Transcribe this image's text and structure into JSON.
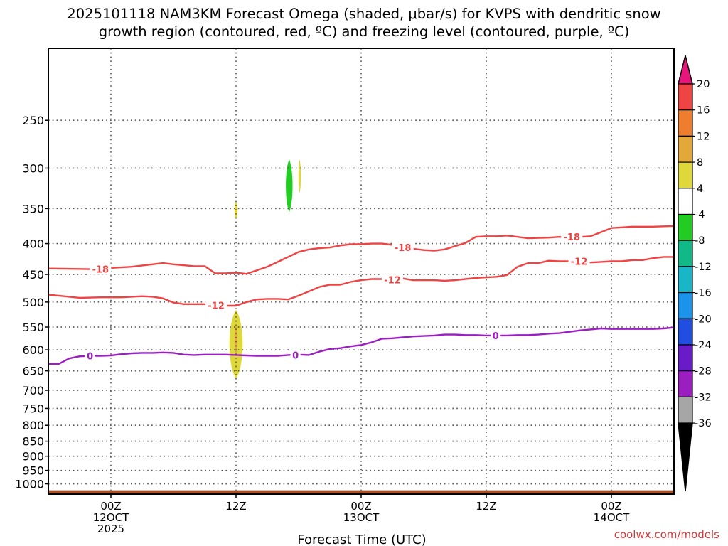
{
  "title_line1": "2025101118 NAM3KM Forecast Omega (shaded, μbar/s) for KVPS with dendritic snow",
  "title_line2": "growth region (contoured, red, ºC) and freezing level (contoured, purple, ºC)",
  "credit": "coolwx.com/models",
  "chart_data": {
    "type": "area",
    "title": "2025101118 NAM3KM Forecast Omega (shaded, μbar/s) for KVPS with dendritic snow growth region (contoured, red, ºC) and freezing level (contoured, purple, ºC)",
    "xlabel": "Forecast Time (UTC)",
    "ylabel": "",
    "x_unit": "hours since 2025-10-11 18Z",
    "xlim": [
      0,
      60
    ],
    "ylim": [
      1040,
      190
    ],
    "y_scale": "log",
    "grid": true,
    "y_ticks": [
      250,
      300,
      350,
      400,
      450,
      500,
      550,
      600,
      650,
      700,
      750,
      800,
      850,
      900,
      950,
      1000
    ],
    "x_ticks": [
      {
        "hour": 6,
        "lines": [
          "00Z",
          "12OCT",
          "2025"
        ]
      },
      {
        "hour": 18,
        "lines": [
          "12Z"
        ]
      },
      {
        "hour": 30,
        "lines": [
          "00Z",
          "13OCT"
        ]
      },
      {
        "hour": 42,
        "lines": [
          "12Z"
        ]
      },
      {
        "hour": 54,
        "lines": [
          "00Z",
          "14OCT"
        ]
      }
    ],
    "contours": [
      {
        "level": -18,
        "color": "#ee4444",
        "x": [
          0,
          4,
          8,
          11,
          12,
          14,
          15,
          16,
          17,
          18,
          19,
          20,
          21,
          22,
          23,
          24,
          25,
          26,
          27,
          28,
          29,
          30,
          31,
          32,
          33,
          34,
          35,
          36,
          37,
          38,
          39,
          40,
          41,
          42,
          43,
          44,
          46,
          48,
          49,
          50,
          52,
          53,
          54,
          55,
          56,
          58,
          60
        ],
        "y": [
          440,
          441,
          437,
          431,
          433,
          436,
          436,
          448,
          448,
          447,
          449,
          443,
          437,
          429,
          421,
          413,
          409,
          407,
          406,
          403,
          401,
          401,
          400,
          400,
          402,
          403,
          408,
          410,
          411,
          409,
          404,
          399,
          390,
          389,
          389,
          388,
          392,
          391,
          390,
          391,
          389,
          383,
          377,
          376,
          375,
          375,
          374
        ],
        "labels": [
          {
            "x": 5,
            "y": 441
          },
          {
            "x": 34,
            "y": 406
          },
          {
            "x": 50.2,
            "y": 390
          }
        ]
      },
      {
        "level": -12,
        "color": "#ee4444",
        "x": [
          0,
          3,
          5,
          7,
          9,
          10,
          11,
          12,
          13,
          14,
          15,
          16,
          17,
          18,
          19,
          20,
          21,
          22,
          23,
          24,
          25,
          26,
          27,
          28,
          29,
          30,
          31,
          32,
          33,
          34,
          35,
          36,
          37,
          38,
          39,
          40,
          41,
          42,
          43,
          44,
          45,
          46,
          47,
          48,
          49,
          50,
          51,
          52,
          53,
          54,
          55,
          56,
          57,
          58,
          59,
          60
        ],
        "y": [
          486,
          492,
          491,
          491,
          489,
          490,
          493,
          501,
          504,
          504,
          504,
          506,
          507,
          507,
          500,
          495,
          494,
          494,
          495,
          488,
          480,
          472,
          468,
          468,
          463,
          460,
          458,
          458,
          459,
          457,
          460,
          460,
          460,
          461,
          460,
          458,
          456,
          455,
          454,
          451,
          437,
          431,
          431,
          427,
          428,
          428,
          429,
          430,
          429,
          428,
          428,
          426,
          426,
          423,
          421,
          421
        ],
        "labels": [
          {
            "x": 16.1,
            "y": 506
          },
          {
            "x": 33,
            "y": 459
          },
          {
            "x": 50.9,
            "y": 428
          }
        ]
      },
      {
        "level": 0,
        "color": "#9b1fc0",
        "x": [
          0,
          1,
          2,
          3,
          4,
          5,
          6,
          7,
          8,
          9,
          10,
          11,
          12,
          13,
          14,
          15,
          16,
          17,
          18,
          19,
          20,
          21,
          22,
          23,
          24,
          25,
          26,
          27,
          28,
          29,
          30,
          31,
          32,
          33,
          34,
          35,
          36,
          37,
          38,
          39,
          40,
          41,
          42,
          43,
          44,
          45,
          46,
          47,
          48,
          49,
          50,
          51,
          52,
          53,
          54,
          55,
          56,
          57,
          58,
          59,
          60
        ],
        "y": [
          633,
          633,
          620,
          615,
          614,
          614,
          613,
          610,
          608,
          607,
          607,
          606,
          607,
          611,
          612,
          611,
          611,
          611,
          612,
          613,
          614,
          614,
          614,
          612,
          611,
          612,
          604,
          598,
          596,
          592,
          589,
          583,
          575,
          574,
          572,
          570,
          569,
          568,
          566,
          566,
          567,
          567,
          568,
          568,
          568,
          567,
          567,
          566,
          564,
          563,
          560,
          557,
          555,
          553,
          554,
          554,
          554,
          554,
          554,
          553,
          551
        ],
        "labels": [
          {
            "x": 4,
            "y": 614
          },
          {
            "x": 23.7,
            "y": 612
          },
          {
            "x": 42.9,
            "y": 568
          }
        ]
      }
    ],
    "omega_blobs": [
      {
        "cx": 18,
        "top": 515,
        "bottom": 670,
        "half_width_h": 0.65,
        "value_range": [
          4,
          8
        ],
        "color": "#dfd83a"
      },
      {
        "cx": 18,
        "top": 545,
        "bottom": 610,
        "half_width_h": 0.15,
        "value_range": [
          8,
          12
        ],
        "color": "#e2a93a"
      },
      {
        "cx": 18,
        "top": 340,
        "bottom": 365,
        "half_width_h": 0.15,
        "value_range": [
          4,
          8
        ],
        "color": "#dfd83a"
      },
      {
        "cx": 23.1,
        "top": 290,
        "bottom": 355,
        "half_width_h": 0.33,
        "value_range": [
          -8,
          -4
        ],
        "color": "#22cc22"
      },
      {
        "cx": 24.1,
        "top": 290,
        "bottom": 330,
        "half_width_h": 0.12,
        "value_range": [
          4,
          8
        ],
        "color": "#dfd83a"
      }
    ],
    "terrain": {
      "color": "#a0522d",
      "y_top": 1025
    },
    "colorbar": {
      "labels": [
        20,
        16,
        12,
        8,
        4,
        -4,
        -8,
        -12,
        -16,
        -20,
        -24,
        -28,
        -32,
        -36
      ],
      "colors": [
        "#e8157d",
        "#ee4444",
        "#ee7e2e",
        "#e2a93a",
        "#dfd83a",
        "#ffffff",
        "#22cc22",
        "#11b888",
        "#19b6c8",
        "#1b93ea",
        "#1f4ee0",
        "#6a1bc8",
        "#9b1fc0",
        "#a6a6a6",
        "#000000"
      ]
    }
  }
}
